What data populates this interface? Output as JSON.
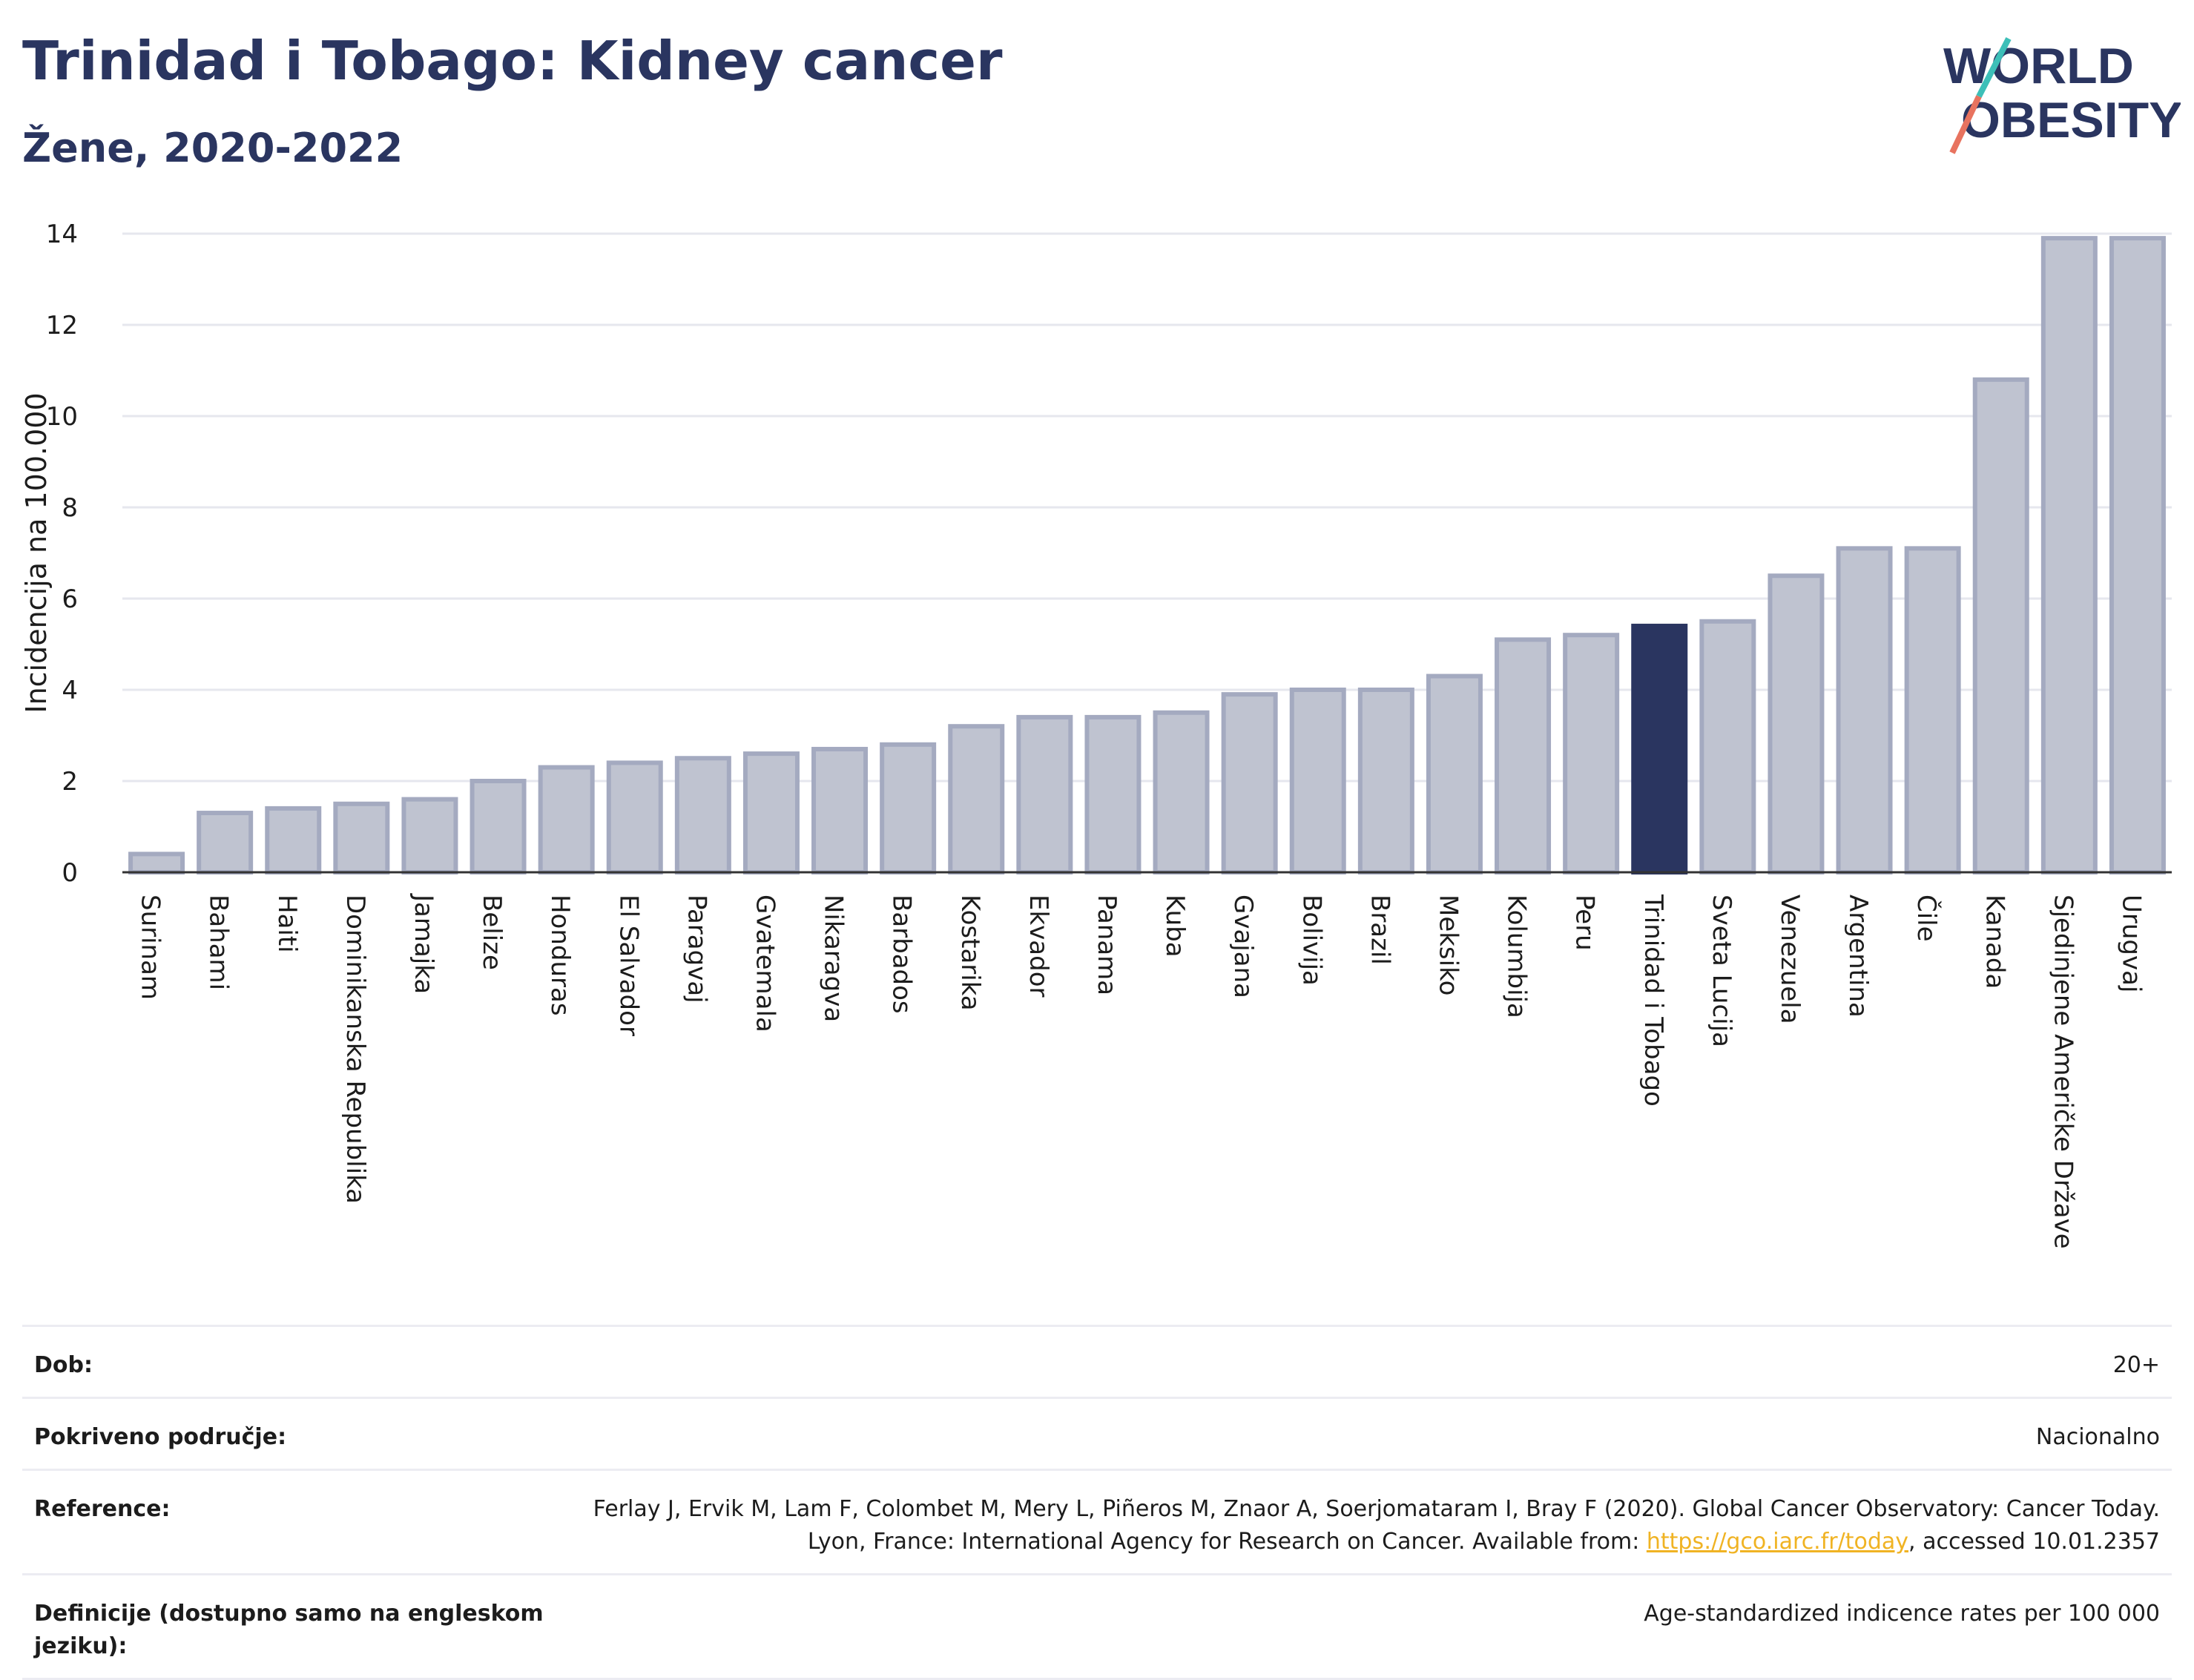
{
  "header": {
    "title": "Trinidad i Tobago: Kidney cancer",
    "subtitle": "Žene, 2020-2022"
  },
  "logo": {
    "line1": "WORLD",
    "line2": "OBESITY"
  },
  "colors": {
    "bar": "#bfc3d0",
    "bar_stroke": "#a4aac0",
    "highlight": "#2a3560",
    "title": "#2a3560",
    "link": "#f0b323"
  },
  "chart_data": {
    "type": "bar",
    "ylabel": "Incidencija na 100.000",
    "xlabel": "",
    "ylim": [
      0,
      14
    ],
    "yticks": [
      0,
      2,
      4,
      6,
      8,
      10,
      12,
      14
    ],
    "grid": true,
    "highlight": "Trinidad i Tobago",
    "categories": [
      "Surinam",
      "Bahami",
      "Haiti",
      "Dominikanska Republika",
      "Jamajka",
      "Belize",
      "Honduras",
      "El Salvador",
      "Paragvaj",
      "Gvatemala",
      "Nikaragva",
      "Barbados",
      "Kostarika",
      "Ekvador",
      "Panama",
      "Kuba",
      "Gvajana",
      "Bolivija",
      "Brazil",
      "Meksiko",
      "Kolumbija",
      "Peru",
      "Trinidad i Tobago",
      "Sveta Lucija",
      "Venezuela",
      "Argentina",
      "Čile",
      "Kanada",
      "Sjedinjene Američke Države",
      "Urugvaj"
    ],
    "values": [
      0.4,
      1.3,
      1.4,
      1.5,
      1.6,
      2.0,
      2.3,
      2.4,
      2.5,
      2.6,
      2.7,
      2.8,
      3.2,
      3.4,
      3.4,
      3.5,
      3.9,
      4.0,
      4.0,
      4.3,
      5.1,
      5.2,
      5.4,
      5.5,
      6.5,
      7.1,
      7.1,
      10.8,
      13.9,
      13.9
    ]
  },
  "info": {
    "age_label": "Dob:",
    "age_value": "20+",
    "coverage_label": "Pokriveno područje:",
    "coverage_value": "Nacionalno",
    "reference_label": "Reference:",
    "reference_text_1": "Ferlay J, Ervik M, Lam F, Colombet M, Mery L, Piñeros M, Znaor A, Soerjomataram I, Bray F (2020). Global Cancer Observatory: Cancer Today. Lyon, France: International Agency for Research on Cancer. Available from: ",
    "reference_link": "https://gco.iarc.fr/today",
    "reference_text_2": ", accessed 10.01.2357",
    "definition_label": "Definicije (dostupno samo na engleskom jeziku):",
    "definition_value": "Age-standardized indicence rates per 100 000"
  }
}
